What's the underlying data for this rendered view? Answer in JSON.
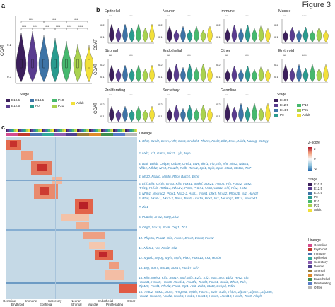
{
  "figure_title": "Figure 3",
  "panel_letters": {
    "a": "a",
    "b": "b",
    "c": "c"
  },
  "stage_colors": {
    "E10.5": "#3b1f5b",
    "E12.5": "#5a3c8f",
    "E14.5": "#3d73a6",
    "P0": "#2a9b8f",
    "P10": "#46b86e",
    "P21": "#a9d24f",
    "Adult": "#f2e03a"
  },
  "panel_a": {
    "ylabel": "CCAT",
    "yticks": [
      "0.1",
      "0.2"
    ],
    "sig_labels": [
      "****",
      "****",
      "****",
      "****",
      "****",
      "****",
      "****",
      "****",
      "****"
    ],
    "legend_title": "Stage",
    "legend_items": [
      "E10.5",
      "E12.5",
      "E14.5",
      "P0",
      "P10",
      "P21",
      "Adult"
    ]
  },
  "panel_b": {
    "ylabel": "CCAT",
    "subplots": [
      {
        "title": "Epithelial",
        "yticks": [
          "0.1",
          "0.2"
        ]
      },
      {
        "title": "Neuron",
        "yticks": [
          "0.1",
          "0.2"
        ]
      },
      {
        "title": "Immune",
        "yticks": [
          "0.1",
          "0.2"
        ]
      },
      {
        "title": "Muscle",
        "yticks": [
          "0.1",
          "0.2"
        ]
      },
      {
        "title": "Stromal",
        "yticks": [
          "0.1",
          "0.2"
        ]
      },
      {
        "title": "Endothelial",
        "yticks": [
          "0.1",
          "0.2"
        ]
      },
      {
        "title": "Other",
        "yticks": [
          "0.1",
          "0.2"
        ]
      },
      {
        "title": "Erythroid",
        "yticks": [
          "0.1",
          "0.2"
        ]
      },
      {
        "title": "Proliferating",
        "yticks": [
          "0.1",
          "0.2"
        ]
      },
      {
        "title": "Secretory",
        "yticks": [
          "0.1",
          "0.2"
        ]
      },
      {
        "title": "Germline",
        "yticks": [
          "0.1",
          "0.2"
        ]
      }
    ],
    "sig_text": "****",
    "ns_text": "ns",
    "legend_title": "Stage",
    "legend_items": [
      "E10.5",
      "E12.5",
      "E14.5",
      "P0",
      "P10",
      "P21",
      "Adult"
    ]
  },
  "panel_c": {
    "lineage_label": "Lineage",
    "gene_modules": [
      "1. Rfx8, Ovol2, Crem, Atf2, Sox5, Creb3l4, Tfb2m, Foxl2, Elf2, Esx1, Mixl1, Nanog, Catsgy",
      "2. Uxl2, Irf1, Gatsa, Nkx2, Lyl1, Myb",
      "3. Batf, Bcl6b, Cebpe, Cebpe, Creb1, Etv6, Ikzf1, Irf2, Irf8, Irf8, Nfat2, Nfatc1,",
      "   Nfkb1, Nfkb2, Nrn3, Pou2f2, Relb, Runx1, Spi1, Spib, Spic, Stat1, Stat5b, Tcf7",
      "4. Hlf10, Pparα, Hnf4α, Rbpj, Bach1, Eshg",
      "5. Ehf, Elf3, Grhl2, Grhl3, Klf5, Foxa1, Spdef, Sox21, Foxp1, Hf5, Foxa2, Sox2,",
      "   Hnf4g, Hnf1b, Hoxb13, Nkx1-2, Pax9, Prdm1, Ostn, Gata2, Ehf, Rfx2, Tbx1",
      "6. Nhlh1, Neurod2, Prox1, Nkx2-2, Ascl1, Insm1, Lhx9, Nr4a2, Phox2b, Isl1, Hand2",
      "6. Rfx6, Nkx6-1, Nkx2-2, Pax4, Pax6, Lmx1a, Pdx1, Isl1, Neurog3, Ptf1a, Neurod1",
      "7. Zic1",
      "8. Pou3f3, Xrnf2, Rarg, Zic2",
      "9. Olig2, Sox10, Sox8, Olig1, Zic1",
      "10. Tfap2a, Tead2, Gli3, Foxc1, Emx2, Emx3, Foxc2",
      "11. Nfatc4, Hlx, Foxf2, Gli2",
      "12. Myod1, Myog, Myf5, Myf6, Pitx2, Hoxc13, Irx3, Hoxb8",
      "13. Erg, Sox7, Sox18, Sox17, Hoxb7, Klf7",
      "14. Klf8, Meis3, Klf4, Sox17, Maf, Elf2, E2f3, Klf2, Max, Ss2, Ebf1, Hey2, Id2,",
      "    Hoxa11, Hoxa5, Hoxc6, Hoxd11, Pou3f1, Tead3, Foxo1, Snai2, Zfhx3, Tal1,",
      "    Zfp428, Foxd1, Nfe2l2, Pax3, Egr1, Atf3, Zeb1, Stat3, Cebpd, Tcf21",
      "15. Tead2, Sox11, Sox4, Hmg20a, Mybl2, Foxm1, E2f7, E2f8, Tfdp1, Zfp367, Zfp521, Zfp386,",
      "    Hoxa2, Hoxa10, Hoxb2, Hoxb5, Hoxb6, Hoxc10, Hoxc9, Hoxd10, Hoxd9, Tbx3, Plagl1"
    ],
    "lineage_bottom_labels": [
      "Germline",
      "Erythroid",
      "Immune",
      "Epithelial",
      "Secretory",
      "Neuron",
      "Stromal",
      "Muscle",
      "Endothelial",
      "Proliferating",
      "Other"
    ],
    "zscore": {
      "title": "Z-score",
      "ticks": [
        "2",
        "0",
        "-2"
      ]
    },
    "stage_legend": {
      "title": "Stage",
      "items": [
        "E10.5",
        "E12.5",
        "E14.5",
        "P0",
        "P10",
        "P21",
        "Adult"
      ]
    },
    "lineage_legend": {
      "title": "Lineage",
      "items": [
        "Germline",
        "Erythroid",
        "Immune",
        "Epithelial",
        "Secretory",
        "Neuron",
        "Stromal",
        "Muscle",
        "Endothelial",
        "Proliferating",
        "Other"
      ],
      "colors": [
        "#d44b8e",
        "#c0392b",
        "#4c72b0",
        "#33a89b",
        "#8e5fb0",
        "#4d3f8f",
        "#9a7d3a",
        "#e08a2a",
        "#3f8f4d",
        "#5a7dc8",
        "#b8b8b8"
      ]
    }
  }
}
